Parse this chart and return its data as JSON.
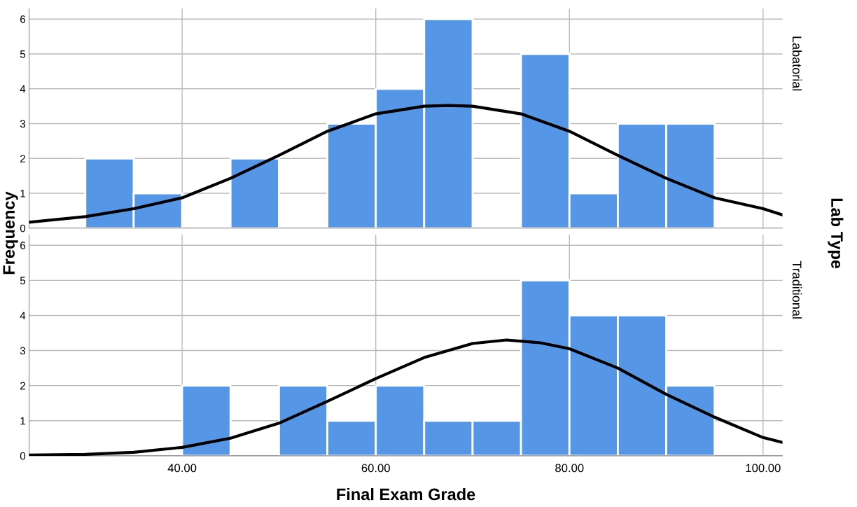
{
  "chart_data": [
    {
      "type": "histogram",
      "ylabel": "Frequency",
      "y2label": "Labatorial",
      "annotations": [
        "Lab Type"
      ],
      "xlim": [
        24.2,
        102
      ],
      "xticks": [
        {
          "value": 40,
          "label": null
        },
        {
          "value": 60,
          "label": null
        },
        {
          "value": 80,
          "label": null
        },
        {
          "value": 100,
          "label": null
        }
      ],
      "ylim": [
        0,
        6.3
      ],
      "yticks": [
        0,
        1,
        2,
        3,
        4,
        5,
        6
      ],
      "grid": true,
      "tick_labels": "y",
      "series": [
        {
          "color": "#5596e6",
          "bins": [
            30,
            35,
            40,
            45,
            50,
            55,
            60,
            65,
            70,
            75,
            80,
            85,
            90,
            95
          ],
          "values": [
            2,
            1,
            0,
            2,
            0,
            3,
            4,
            6,
            0,
            5,
            1,
            3,
            3
          ]
        },
        {
          "type": "line",
          "color": "#000000",
          "x": [
            24.2,
            30,
            35,
            40,
            45,
            50,
            55,
            60,
            65,
            67.5,
            70,
            75,
            80,
            85,
            90,
            95,
            100,
            102
          ],
          "values": [
            0.17,
            0.33,
            0.56,
            0.87,
            1.43,
            2.09,
            2.78,
            3.28,
            3.5,
            3.52,
            3.5,
            3.28,
            2.78,
            2.09,
            1.43,
            0.87,
            0.56,
            0.38
          ]
        }
      ]
    },
    {
      "type": "histogram",
      "xlabel": "Final Exam Grade",
      "y2label": "Traditional",
      "xlim": [
        24.2,
        102
      ],
      "xticks": [
        {
          "value": 40,
          "label": "40.00"
        },
        {
          "value": 60,
          "label": "60.00"
        },
        {
          "value": 80,
          "label": "80.00"
        },
        {
          "value": 100,
          "label": "100.00"
        }
      ],
      "ylim": [
        0,
        6.3
      ],
      "yticks": [
        0,
        1,
        2,
        3,
        4,
        5,
        6
      ],
      "grid": true,
      "series": [
        {
          "color": "#5596e6",
          "bins": [
            40,
            45,
            50,
            55,
            60,
            65,
            70,
            75,
            80,
            85,
            90,
            95
          ],
          "values": [
            2,
            0,
            2,
            1,
            2,
            1,
            1,
            5,
            4,
            4,
            2
          ]
        },
        {
          "type": "line",
          "color": "#000000",
          "x": [
            24.2,
            30,
            35,
            40,
            45,
            50,
            55,
            60,
            65,
            70,
            73.5,
            77,
            80,
            85,
            90,
            95,
            100,
            102
          ],
          "values": [
            0.02,
            0.04,
            0.1,
            0.24,
            0.5,
            0.93,
            1.55,
            2.2,
            2.8,
            3.2,
            3.3,
            3.22,
            3.05,
            2.5,
            1.75,
            1.1,
            0.52,
            0.38
          ]
        }
      ]
    }
  ]
}
